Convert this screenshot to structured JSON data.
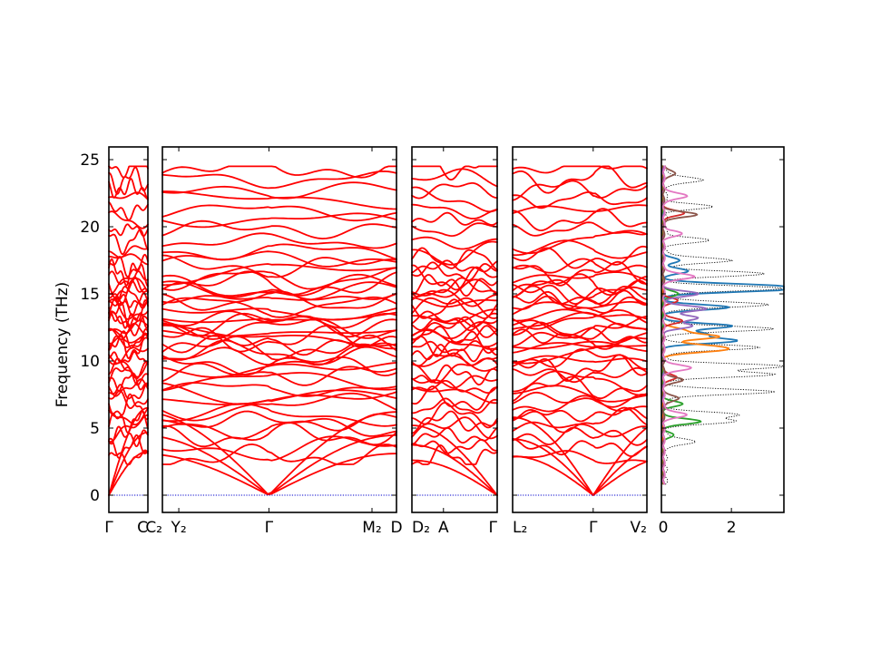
{
  "chart_data": [
    {
      "type": "line",
      "kind": "phonon-band-structure",
      "ylabel": "Frequency (THz)",
      "ylim": [
        -1.3,
        26
      ],
      "yticks": [
        0,
        5,
        10,
        15,
        20,
        25
      ],
      "line_color": "#ff0000",
      "zero_line_color": "#0000cc",
      "segments": [
        {
          "start_label": "Γ",
          "end_label": "C",
          "length": 0.297
        },
        {
          "start_label": "C₂",
          "mid_label": "Y₂",
          "mid_pos": 0.07,
          "break_pos": 0.455,
          "break_label": "Γ",
          "end_label": "M₂",
          "end_label2": "D",
          "length": 1.75
        },
        {
          "start_label": "D₂",
          "mid_label": "A",
          "mid_pos": 0.37,
          "end_label": "Γ",
          "length": 0.64
        },
        {
          "start_label": "L₂",
          "break_pos": 0.6,
          "break_label": "Γ",
          "end_label": "V₂",
          "length": 1.0
        }
      ],
      "branch_count": 48,
      "acoustic_max_thz": [
        6.5,
        6.2,
        5.2,
        5.8
      ],
      "optical_bands_thz_approx": [
        2.8,
        3.6,
        4.4,
        5.0,
        5.5,
        6.0,
        6.6,
        7.1,
        7.6,
        8.0,
        8.5,
        9.0,
        9.4,
        9.8,
        10.2,
        10.6,
        11.0,
        11.3,
        11.6,
        11.9,
        12.2,
        12.5,
        12.8,
        13.1,
        13.4,
        13.8,
        14.1,
        14.5,
        14.8,
        15.1,
        15.4,
        15.7,
        16.1,
        16.6,
        17.0,
        17.6,
        18.2,
        18.9,
        19.8,
        20.5,
        21.2,
        22.0,
        22.8,
        23.5,
        24.4
      ]
    },
    {
      "type": "line",
      "kind": "projected-phonon-dos",
      "xlim": [
        0,
        3.5
      ],
      "xticks": [
        0,
        2
      ],
      "ylim": [
        -1.3,
        26
      ],
      "total_color": "#000000",
      "series": [
        {
          "color": "#1f77b4",
          "peaks": [
            [
              15.3,
              2.8
            ],
            [
              15.6,
              2.5
            ],
            [
              14.0,
              1.9
            ],
            [
              12.6,
              2.0
            ],
            [
              12.0,
              1.2
            ],
            [
              11.5,
              2.1
            ],
            [
              16.7,
              0.75
            ],
            [
              17.5,
              0.5
            ]
          ]
        },
        {
          "color": "#ff7f0e",
          "peaks": [
            [
              11.8,
              1.6
            ],
            [
              11.1,
              1.1
            ],
            [
              10.8,
              1.4
            ],
            [
              12.3,
              0.6
            ]
          ]
        },
        {
          "color": "#2ca02c",
          "peaks": [
            [
              5.5,
              1.1
            ],
            [
              6.8,
              0.55
            ],
            [
              15.0,
              0.45
            ],
            [
              4.5,
              0.3
            ]
          ]
        },
        {
          "color": "#d62728",
          "peaks": [
            [
              13.0,
              0.55
            ],
            [
              21.0,
              0.6
            ],
            [
              8.8,
              0.4
            ],
            [
              14.5,
              0.4
            ]
          ]
        },
        {
          "color": "#9467bd",
          "peaks": [
            [
              13.2,
              1.0
            ],
            [
              13.9,
              1.25
            ],
            [
              12.6,
              0.8
            ],
            [
              15.0,
              1.0
            ]
          ]
        },
        {
          "color": "#8c564b",
          "peaks": [
            [
              20.9,
              0.95
            ],
            [
              8.6,
              0.55
            ],
            [
              7.2,
              0.45
            ],
            [
              24.0,
              0.35
            ]
          ]
        },
        {
          "color": "#e377c2",
          "peaks": [
            [
              6.0,
              0.65
            ],
            [
              9.5,
              0.8
            ],
            [
              16.3,
              0.9
            ],
            [
              22.3,
              0.7
            ],
            [
              19.5,
              0.5
            ]
          ]
        }
      ],
      "total_peaks": [
        [
          15.4,
          3.3
        ],
        [
          14.2,
          3.0
        ],
        [
          16.5,
          2.8
        ],
        [
          9.6,
          3.35
        ],
        [
          9.0,
          3.1
        ],
        [
          7.7,
          3.1
        ],
        [
          11.0,
          2.7
        ],
        [
          12.4,
          3.1
        ],
        [
          6.0,
          2.0
        ],
        [
          5.5,
          1.9
        ],
        [
          21.5,
          1.3
        ],
        [
          23.5,
          1.1
        ],
        [
          19.0,
          1.2
        ],
        [
          17.5,
          1.9
        ],
        [
          4.0,
          0.9
        ]
      ]
    }
  ]
}
